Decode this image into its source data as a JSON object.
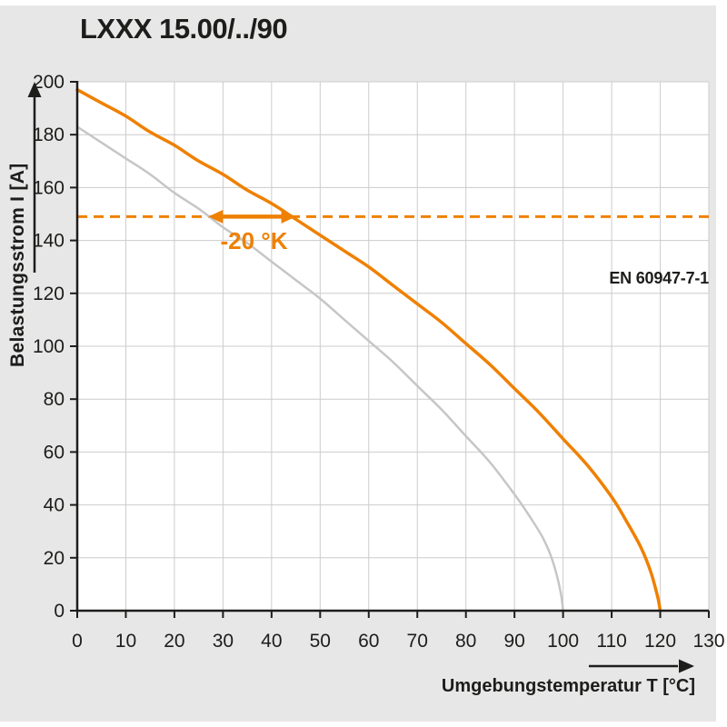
{
  "page": {
    "title": "LXXX 15.00/../90"
  },
  "chart_data": {
    "type": "line",
    "title": "LXXX 15.00/../90",
    "xlabel": "Umgebungstemperatur T [°C]",
    "ylabel": "Belastungsstrom I [A]",
    "xlim": [
      0,
      130
    ],
    "ylim": [
      0,
      200
    ],
    "xticks": [
      0,
      10,
      20,
      30,
      40,
      50,
      60,
      70,
      80,
      90,
      100,
      110,
      120,
      130
    ],
    "yticks": [
      0,
      20,
      40,
      60,
      80,
      100,
      120,
      140,
      160,
      180,
      200
    ],
    "grid": true,
    "legend": "none",
    "colors": {
      "accent": "#ef8000",
      "curve_secondary": "#c6c6c6",
      "grid": "#cccccc",
      "axis": "#1d1d1b",
      "plot_background": "#ffffff",
      "page_background": "#e7e7e7"
    },
    "series": [
      {
        "name": "derating-curve-main",
        "color": "#ef8000",
        "points": [
          [
            0,
            197
          ],
          [
            5,
            192
          ],
          [
            10,
            187
          ],
          [
            15,
            181
          ],
          [
            20,
            176
          ],
          [
            25,
            170
          ],
          [
            30,
            165
          ],
          [
            35,
            159
          ],
          [
            40,
            154
          ],
          [
            45,
            148
          ],
          [
            50,
            142
          ],
          [
            55,
            136
          ],
          [
            60,
            130
          ],
          [
            65,
            123
          ],
          [
            70,
            116
          ],
          [
            75,
            109
          ],
          [
            80,
            101
          ],
          [
            85,
            93
          ],
          [
            90,
            84
          ],
          [
            95,
            75
          ],
          [
            100,
            65
          ],
          [
            105,
            55
          ],
          [
            110,
            43
          ],
          [
            113,
            34
          ],
          [
            116,
            24
          ],
          [
            118,
            15
          ],
          [
            119.5,
            5
          ],
          [
            120,
            0
          ]
        ]
      },
      {
        "name": "derating-curve-reference",
        "color": "#c6c6c6",
        "points": [
          [
            0,
            183
          ],
          [
            5,
            177
          ],
          [
            10,
            171
          ],
          [
            15,
            165
          ],
          [
            20,
            158
          ],
          [
            25,
            152
          ],
          [
            30,
            145
          ],
          [
            35,
            139
          ],
          [
            40,
            132
          ],
          [
            45,
            125
          ],
          [
            50,
            118
          ],
          [
            55,
            110
          ],
          [
            60,
            102
          ],
          [
            65,
            94
          ],
          [
            70,
            85
          ],
          [
            75,
            76
          ],
          [
            80,
            66
          ],
          [
            85,
            56
          ],
          [
            90,
            44
          ],
          [
            93,
            36
          ],
          [
            96,
            27
          ],
          [
            98,
            18
          ],
          [
            99.5,
            7
          ],
          [
            100,
            0
          ]
        ]
      }
    ],
    "annotations": {
      "dashed_line": {
        "y": 149,
        "color": "#ef8000"
      },
      "delta_arrow": {
        "label": "-20 °K",
        "y": 149,
        "x_from": 27,
        "x_to": 45,
        "color": "#ef8000"
      },
      "note": {
        "text": "EN 60947-7-1"
      }
    }
  }
}
